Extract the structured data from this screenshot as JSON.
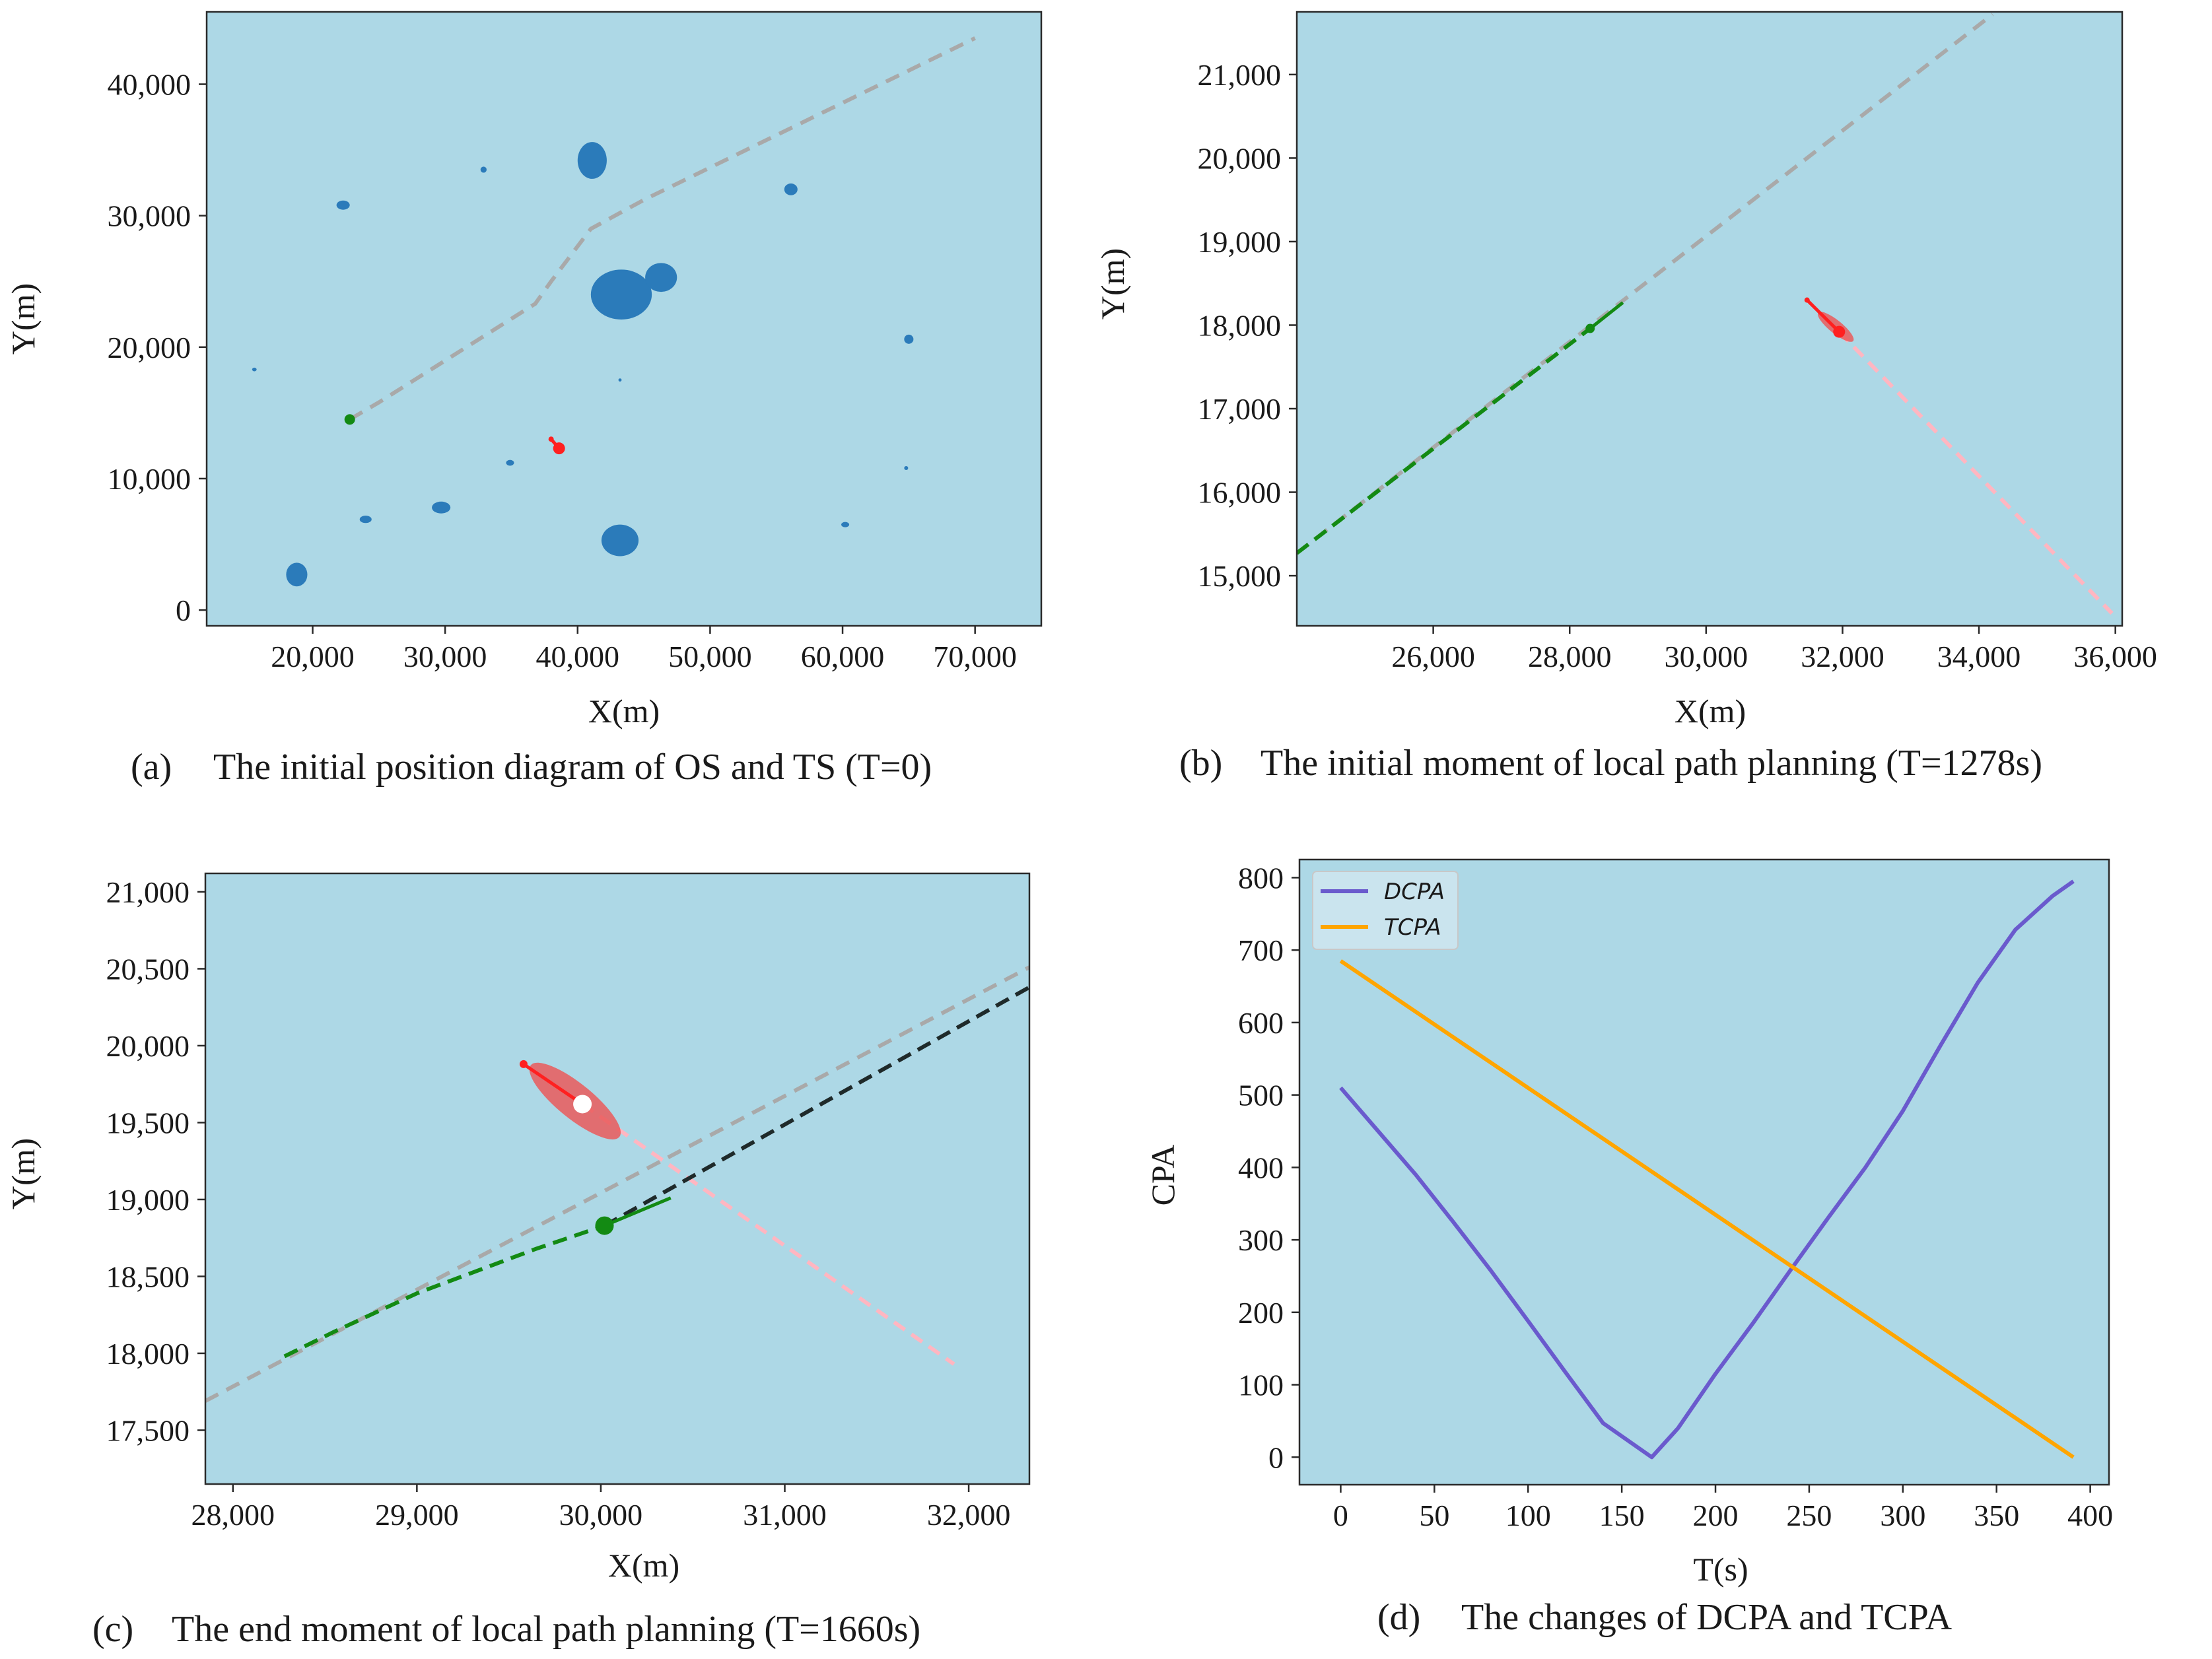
{
  "colors": {
    "plot_bg": "#add8e6",
    "island": "#2b7bba",
    "global_path": "#a9a9a9",
    "own_ship": "#138a13",
    "target_ship": "#ff2020",
    "target_domain": "#ea5a5a",
    "target_future": "#ffb6c1",
    "replanned": "#1f2a2a",
    "dcpa": "#6a5acd",
    "tcpa": "#ffa500"
  },
  "chart_data": [
    {
      "id": "a",
      "type": "scatter",
      "caption_letter": "(a)",
      "caption_text": "The initial position diagram of OS and TS (T=0)",
      "xlabel": "X(m)",
      "ylabel": "Y(m)",
      "xlim": [
        12000,
        75000
      ],
      "ylim": [
        -1200,
        45500
      ],
      "xticks": [
        20000,
        30000,
        40000,
        50000,
        60000,
        70000
      ],
      "xtick_labels": [
        "20,000",
        "30,000",
        "40,000",
        "50,000",
        "60,000",
        "70,000"
      ],
      "yticks": [
        0,
        10000,
        20000,
        30000,
        40000
      ],
      "ytick_labels": [
        "0",
        "10,000",
        "20,000",
        "30,000",
        "40,000"
      ],
      "global_path": [
        [
          22800,
          14500
        ],
        [
          25000,
          15800
        ],
        [
          36800,
          23300
        ],
        [
          38000,
          25000
        ],
        [
          41000,
          29000
        ],
        [
          45000,
          31200
        ],
        [
          70000,
          43500
        ]
      ],
      "own_ship": [
        22800,
        14500
      ],
      "target_ship": {
        "from": [
          38000,
          13000
        ],
        "to": [
          38600,
          12300
        ]
      },
      "islands": [
        {
          "center": [
            43300,
            24000
          ],
          "rx": 2300,
          "ry": 1900
        },
        {
          "center": [
            46300,
            25300
          ],
          "rx": 1200,
          "ry": 1100
        },
        {
          "center": [
            41100,
            34200
          ],
          "rx": 1100,
          "ry": 1400
        },
        {
          "center": [
            43200,
            5300
          ],
          "rx": 1400,
          "ry": 1200
        },
        {
          "center": [
            18800,
            2700
          ],
          "rx": 800,
          "ry": 900
        },
        {
          "center": [
            22300,
            30800
          ],
          "rx": 500,
          "ry": 350
        },
        {
          "center": [
            29700,
            7800
          ],
          "rx": 700,
          "ry": 450
        },
        {
          "center": [
            56100,
            32000
          ],
          "rx": 500,
          "ry": 450
        },
        {
          "center": [
            24000,
            6900
          ],
          "rx": 450,
          "ry": 280
        },
        {
          "center": [
            65000,
            20600
          ],
          "rx": 350,
          "ry": 350
        },
        {
          "center": [
            60200,
            6500
          ],
          "rx": 300,
          "ry": 200
        },
        {
          "center": [
            34900,
            11200
          ],
          "rx": 300,
          "ry": 220
        },
        {
          "center": [
            32900,
            33500
          ],
          "rx": 230,
          "ry": 230
        },
        {
          "center": [
            15600,
            18300
          ],
          "rx": 170,
          "ry": 140
        },
        {
          "center": [
            64800,
            10800
          ],
          "rx": 150,
          "ry": 150
        },
        {
          "center": [
            43200,
            17500
          ],
          "rx": 120,
          "ry": 120
        }
      ]
    },
    {
      "id": "b",
      "type": "line",
      "caption_letter": "(b)",
      "caption_text": "The initial moment of local path planning (T=1278s)",
      "xlabel": "X(m)",
      "ylabel": "Y(m)",
      "xlim": [
        24000,
        36100
      ],
      "ylim": [
        14400,
        21750
      ],
      "xticks": [
        26000,
        28000,
        30000,
        32000,
        34000,
        36000
      ],
      "xtick_labels": [
        "26,000",
        "28,000",
        "30,000",
        "32,000",
        "34,000",
        "36,000"
      ],
      "yticks": [
        15000,
        16000,
        17000,
        18000,
        19000,
        20000,
        21000
      ],
      "ytick_labels": [
        "15,000",
        "16,000",
        "17,000",
        "18,000",
        "19,000",
        "20,000",
        "21,000"
      ],
      "global_path": [
        [
          24000,
          15270
        ],
        [
          34200,
          21720
        ]
      ],
      "os_travelled": [
        [
          24000,
          15270
        ],
        [
          28300,
          17960
        ]
      ],
      "os_ahead": [
        [
          28300,
          17960
        ],
        [
          28780,
          18270
        ]
      ],
      "own_ship": [
        28300,
        17960
      ],
      "ts_future": [
        [
          31950,
          17920
        ],
        [
          35950,
          14550
        ]
      ],
      "target_ship": {
        "from": [
          31480,
          18300
        ],
        "to": [
          31950,
          17920
        ],
        "domain_center": [
          31900,
          17980
        ],
        "domain_rx": 330,
        "domain_ry": 95,
        "domain_angle_deg": 39
      }
    },
    {
      "id": "c",
      "type": "line",
      "caption_letter": "(c)",
      "caption_text": "The end moment of local path planning (T=1660s)",
      "xlabel": "X(m)",
      "ylabel": "Y(m)",
      "xlim": [
        27850,
        32330
      ],
      "ylim": [
        17150,
        21120
      ],
      "xticks": [
        28000,
        29000,
        30000,
        31000,
        32000
      ],
      "xtick_labels": [
        "28,000",
        "29,000",
        "30,000",
        "31,000",
        "32,000"
      ],
      "yticks": [
        17500,
        18000,
        18500,
        19000,
        19500,
        20000,
        20500,
        21000
      ],
      "ytick_labels": [
        "17,500",
        "18,000",
        "18,500",
        "19,000",
        "19,500",
        "20,000",
        "20,500",
        "21,000"
      ],
      "global_path": [
        [
          27850,
          17690
        ],
        [
          32330,
          20510
        ]
      ],
      "os_travelled": [
        [
          28280,
          17980
        ],
        [
          28550,
          18140
        ],
        [
          29000,
          18390
        ],
        [
          29650,
          18680
        ],
        [
          30020,
          18830
        ]
      ],
      "os_ahead": [
        [
          30020,
          18830
        ],
        [
          30380,
          19010
        ]
      ],
      "replanned": [
        [
          30020,
          18830
        ],
        [
          32330,
          20380
        ]
      ],
      "own_ship": [
        30020,
        18830
      ],
      "ts_future": [
        [
          29900,
          19620
        ],
        [
          31920,
          17930
        ]
      ],
      "target_ship": {
        "from": [
          29580,
          19880
        ],
        "to": [
          29900,
          19620
        ],
        "domain_center": [
          29860,
          19640
        ],
        "domain_rx": 310,
        "domain_ry": 95,
        "domain_angle_deg": 39
      }
    },
    {
      "id": "d",
      "type": "line",
      "caption_letter": "(d)",
      "caption_text": "The changes of DCPA and TCPA",
      "xlabel": "T(s)",
      "ylabel": "CPA",
      "xlim": [
        -22,
        410
      ],
      "ylim": [
        -38,
        825
      ],
      "xticks": [
        0,
        50,
        100,
        150,
        200,
        250,
        300,
        350,
        400
      ],
      "xtick_labels": [
        "0",
        "50",
        "100",
        "150",
        "200",
        "250",
        "300",
        "350",
        "400"
      ],
      "yticks": [
        0,
        100,
        200,
        300,
        400,
        500,
        600,
        700,
        800
      ],
      "ytick_labels": [
        "0",
        "100",
        "200",
        "300",
        "400",
        "500",
        "600",
        "700",
        "800"
      ],
      "legend_position": "top-left",
      "series": [
        {
          "name": "DCPA",
          "color_key": "dcpa",
          "x": [
            0,
            20,
            40,
            60,
            80,
            100,
            120,
            140,
            166,
            180,
            200,
            220,
            240,
            260,
            280,
            300,
            320,
            340,
            360,
            380,
            391
          ],
          "y": [
            510,
            450,
            390,
            325,
            258,
            188,
            117,
            47,
            0,
            40,
            115,
            185,
            258,
            330,
            400,
            478,
            568,
            655,
            728,
            775,
            795
          ]
        },
        {
          "name": "TCPA",
          "color_key": "tcpa",
          "x": [
            0,
            391
          ],
          "y": [
            685,
            0
          ]
        }
      ]
    }
  ]
}
